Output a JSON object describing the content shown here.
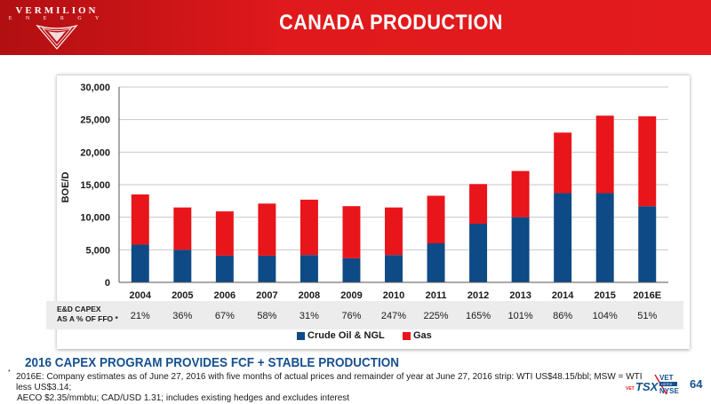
{
  "brand": {
    "name": "VERMILION",
    "sub": "E N E R G Y"
  },
  "title": "CANADA PRODUCTION",
  "chart_data": {
    "type": "bar",
    "stacked": true,
    "categories": [
      "2004",
      "2005",
      "2006",
      "2007",
      "2008",
      "2009",
      "2010",
      "2011",
      "2012",
      "2013",
      "2014",
      "2015",
      "2016E"
    ],
    "series": [
      {
        "name": "Crude Oil & NGL",
        "color": "#0e4a85",
        "values": [
          5800,
          5000,
          4100,
          4100,
          4200,
          3700,
          4200,
          6000,
          9000,
          10000,
          13700,
          13700,
          11700
        ]
      },
      {
        "name": "Gas",
        "color": "#e8151b",
        "values": [
          7700,
          6500,
          6800,
          8000,
          8500,
          8000,
          7300,
          7300,
          6100,
          7100,
          9300,
          11900,
          13800
        ]
      }
    ],
    "ylabel": "BOE/D",
    "ylim": [
      0,
      30000
    ],
    "yticks": [
      "0",
      "5,000",
      "10,000",
      "15,000",
      "20,000",
      "25,000",
      "30,000"
    ],
    "grid": true,
    "legend": "bottom"
  },
  "capex": {
    "label_line1": "E&D CAPEX",
    "label_line2": "AS A % OF FFO *",
    "values": [
      "21%",
      "36%",
      "67%",
      "58%",
      "31%",
      "76%",
      "247%",
      "225%",
      "165%",
      "101%",
      "86%",
      "104%",
      "51%"
    ]
  },
  "tagline": "2016 CAPEX PROGRAM PROVIDES FCF + STABLE PRODUCTION",
  "footnote": {
    "mark": "*",
    "line1": "2016E: Company estimates as of June 27, 2016 with five months of actual prices and remainder of year at June 27, 2016 strip: WTI US$48.15/bbl; MSW = WTI less US$3.14;",
    "line2": "AECO $2.35/mmbtu;  CAD/USD 1.31; includes existing hedges and excludes interest"
  },
  "ticker": {
    "vet": "VET",
    "tsx": "TSX",
    "vet2": "VET",
    "listed": "LISTED",
    "nyse": "NYSE"
  },
  "page_number": "64"
}
